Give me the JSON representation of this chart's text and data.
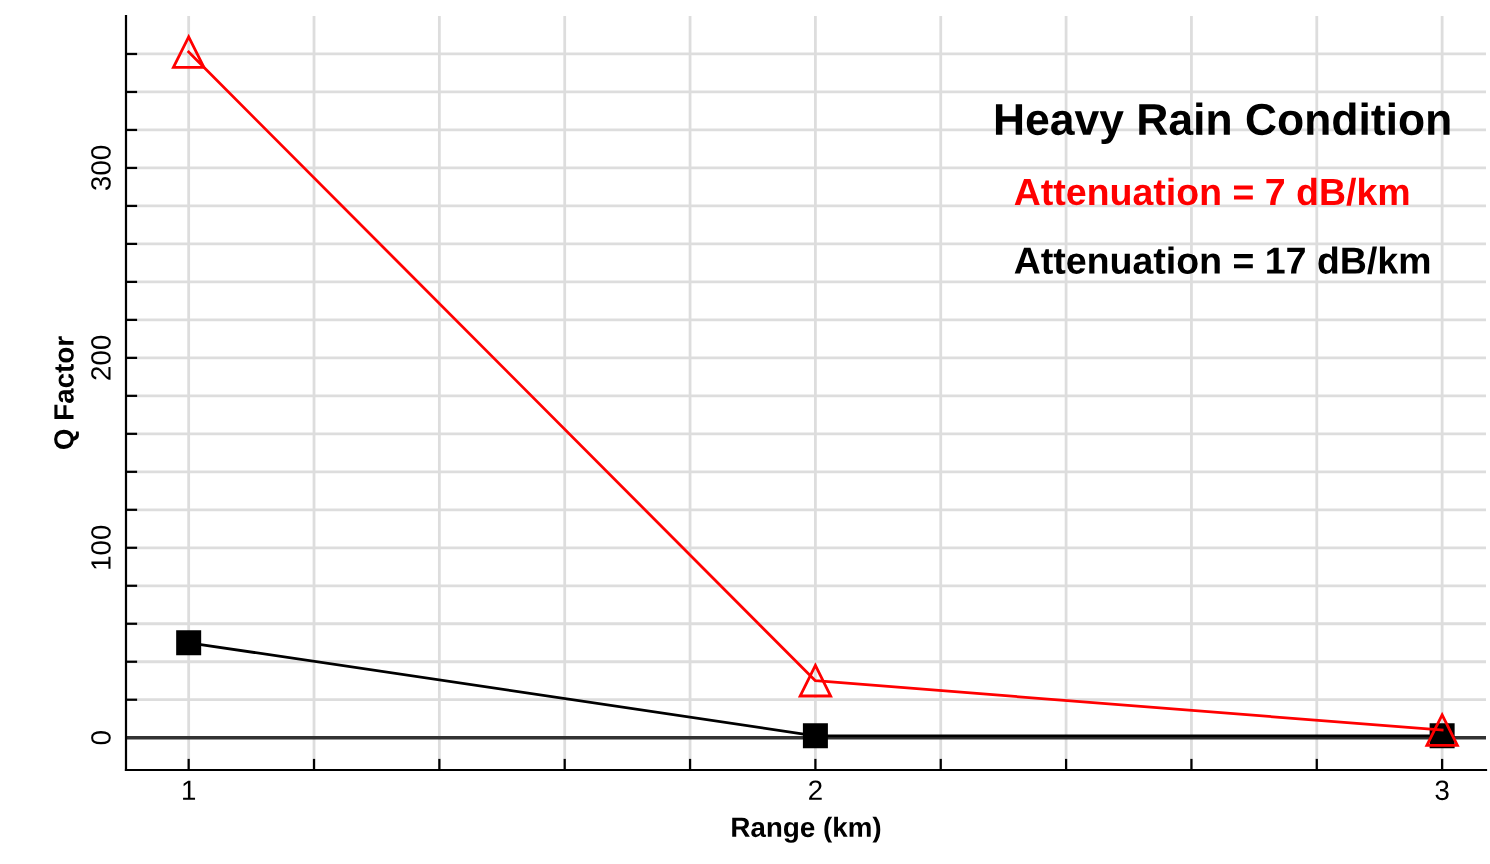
{
  "chart_data": {
    "type": "line",
    "xlabel": "Range (km)",
    "ylabel": "Q Factor",
    "legend_title": "Heavy Rain Condition",
    "x": [
      1,
      2,
      3
    ],
    "series": [
      {
        "name": "Attenuation = 7 dB/km",
        "color": "#ff0000",
        "values": [
          361,
          30,
          4
        ],
        "marker": "triangle"
      },
      {
        "name": "Attenuation = 17 dB/km",
        "color": "#000000",
        "values": [
          50,
          1,
          1
        ],
        "marker": "square"
      }
    ],
    "xlim": [
      0.9,
      3.07
    ],
    "ylim": [
      -17,
      380
    ],
    "xticks": [
      1,
      {
        "value": 1.2,
        "label": null
      },
      {
        "value": 1.4,
        "label": null
      },
      {
        "value": 1.6,
        "label": null
      },
      {
        "value": 1.8,
        "label": null
      },
      2,
      {
        "value": 2.2,
        "label": null
      },
      {
        "value": 2.4,
        "label": null
      },
      {
        "value": 2.6,
        "label": null
      },
      {
        "value": 2.8,
        "label": null
      },
      3
    ],
    "yticks": [
      0,
      {
        "value": 20,
        "label": null
      },
      {
        "value": 40,
        "label": null
      },
      {
        "value": 60,
        "label": null
      },
      {
        "value": 80,
        "label": null
      },
      100,
      {
        "value": 120,
        "label": null
      },
      {
        "value": 140,
        "label": null
      },
      {
        "value": 160,
        "label": null
      },
      {
        "value": 180,
        "label": null
      },
      200,
      {
        "value": 220,
        "label": null
      },
      {
        "value": 240,
        "label": null
      },
      {
        "value": 260,
        "label": null
      },
      {
        "value": 280,
        "label": null
      },
      300,
      {
        "value": 320,
        "label": null
      },
      {
        "value": 340,
        "label": null
      },
      {
        "value": 360,
        "label": null
      }
    ],
    "ref_lines": [
      {
        "axis": "y",
        "value": 0,
        "color": "#333333"
      }
    ],
    "grid": true,
    "legend": "top right",
    "line_style": "solid"
  }
}
